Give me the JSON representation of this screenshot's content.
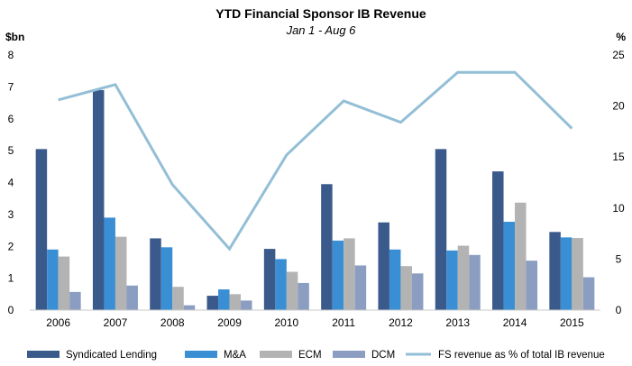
{
  "chart_data": {
    "type": "bar",
    "title": "YTD Financial Sponsor IB Revenue",
    "subtitle": "Jan 1 - Aug 6",
    "y_left_unit": "$bn",
    "y_right_unit": "%",
    "categories": [
      "2006",
      "2007",
      "2008",
      "2009",
      "2010",
      "2011",
      "2012",
      "2013",
      "2014",
      "2015"
    ],
    "ylim_left": [
      0,
      8
    ],
    "y_left_ticks": [
      "0",
      "1",
      "2",
      "3",
      "4",
      "5",
      "6",
      "7",
      "8"
    ],
    "ylim_right": [
      0,
      25
    ],
    "y_right_ticks": [
      "0",
      "5",
      "10",
      "15",
      "20",
      "25"
    ],
    "series": [
      {
        "name": "Syndicated Lending",
        "type": "bar",
        "color": "#3b5a8c",
        "values": [
          5.05,
          6.9,
          2.25,
          0.45,
          1.92,
          3.95,
          2.75,
          5.05,
          4.35,
          2.45
        ]
      },
      {
        "name": "M&A",
        "type": "bar",
        "color": "#3a8fd4",
        "values": [
          1.9,
          2.9,
          1.97,
          0.65,
          1.6,
          2.18,
          1.9,
          1.87,
          2.77,
          2.28
        ]
      },
      {
        "name": "ECM",
        "type": "bar",
        "color": "#b3b3b3",
        "values": [
          1.68,
          2.3,
          0.73,
          0.5,
          1.2,
          2.25,
          1.38,
          2.02,
          3.37,
          2.26
        ]
      },
      {
        "name": "DCM",
        "type": "bar",
        "color": "#8b9ec2",
        "values": [
          0.57,
          0.77,
          0.15,
          0.3,
          0.85,
          1.4,
          1.15,
          1.73,
          1.55,
          1.03
        ]
      },
      {
        "name": "FS revenue as % of total IB revenue",
        "type": "line",
        "axis": "right",
        "color": "#93bfd6",
        "values": [
          20.6,
          22.1,
          12.3,
          6.0,
          15.2,
          20.5,
          18.4,
          23.3,
          23.3,
          17.8
        ]
      }
    ],
    "legend_position": "bottom",
    "grid": false
  }
}
